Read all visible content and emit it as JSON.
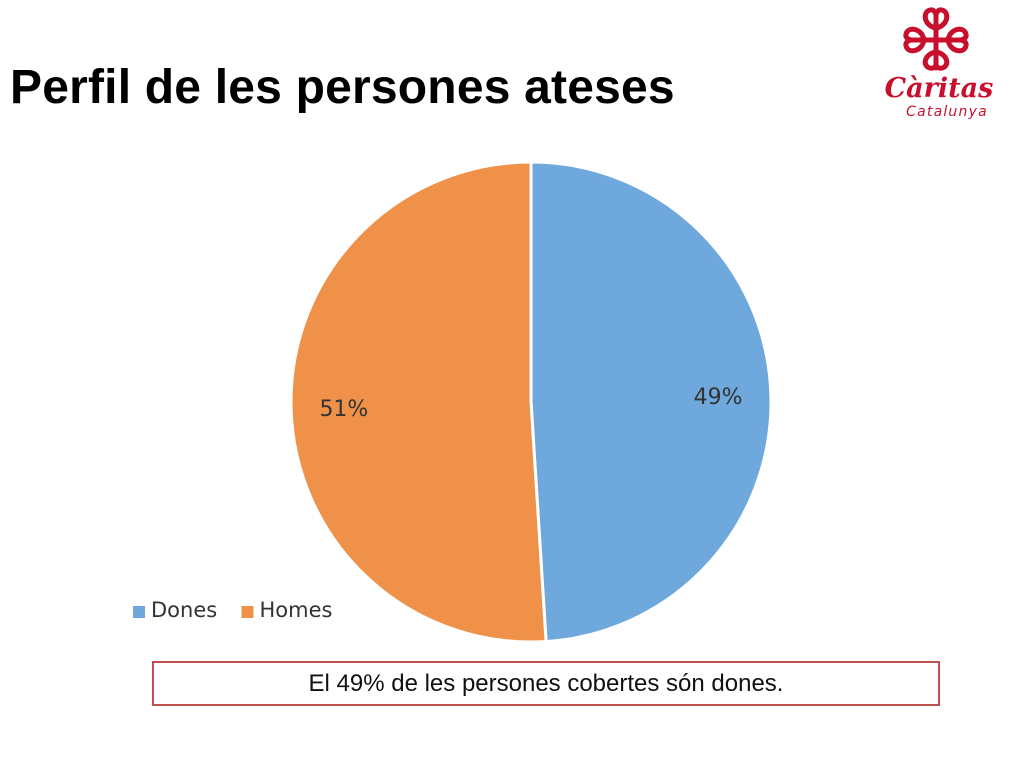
{
  "slide": {
    "title": "Perfil de les persones ateses",
    "callout": "El 49% de les persones cobertes són dones."
  },
  "logo": {
    "name": "Càritas",
    "subtitle": "Catalunya",
    "color": "#c8102e"
  },
  "chart_data": {
    "type": "pie",
    "title": "",
    "categories": [
      "Dones",
      "Homes"
    ],
    "values": [
      49,
      51
    ],
    "labels": [
      "49%",
      "51%"
    ],
    "colors": [
      "#6fa8dc",
      "#f0914a"
    ],
    "legend_position": "bottom-left",
    "start_angle_deg": 0,
    "direction": "clockwise"
  }
}
